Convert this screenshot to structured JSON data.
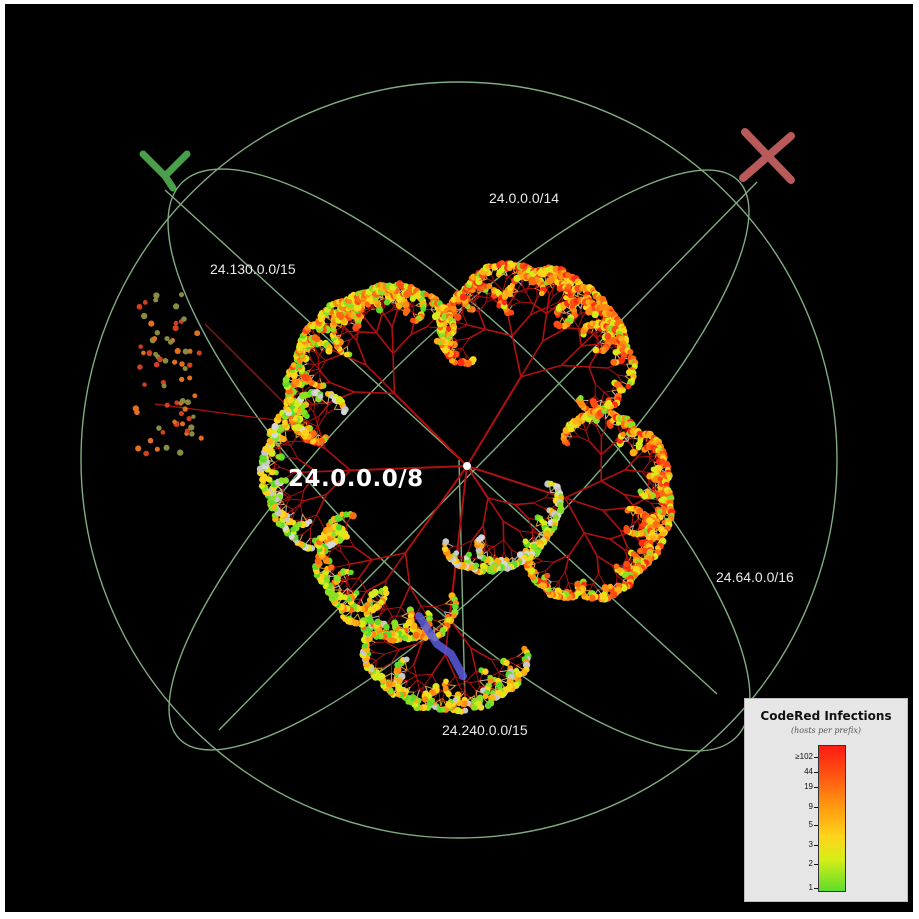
{
  "prefix_labels": {
    "root": "24.0.0.0/8",
    "p14": "24.0.0.0/14",
    "p130": "24.130.0.0/15",
    "p64": "24.64.0.0/16",
    "p240": "24.240.0.0/15"
  },
  "axes": {
    "x_label": "X",
    "y_label": "Y"
  },
  "legend": {
    "title": "CodeRed Infections",
    "subtitle": "(hosts per prefix)",
    "ticks": [
      "≥102",
      "44",
      "19",
      "9",
      "5",
      "3",
      "2",
      "1"
    ]
  },
  "colors": {
    "background": "#000000",
    "sphere": "#8fbf8f",
    "x_axis": "#b85a5a",
    "y_axis": "#4aa04a",
    "edge": "#b01010",
    "leaf_low": "#5fdc2a",
    "leaf_high": "#ff2010",
    "leaf_grey": "#c8c8c8",
    "highlight": "#5a5adc"
  }
}
